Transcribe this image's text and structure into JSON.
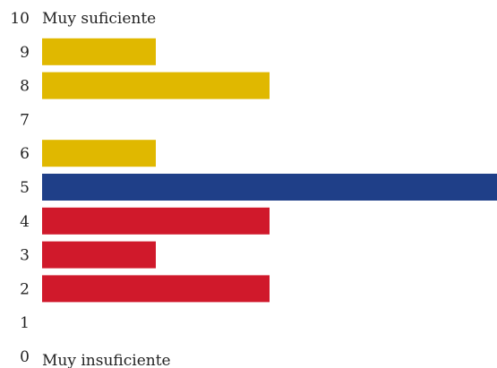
{
  "chart_data": {
    "type": "bar",
    "orientation": "horizontal",
    "categories": [
      "10",
      "9",
      "8",
      "7",
      "6",
      "5",
      "4",
      "3",
      "2",
      "1",
      "0"
    ],
    "values": [
      0,
      1,
      2,
      0,
      1,
      4,
      2,
      1,
      2,
      0,
      0
    ],
    "colors": [
      "#e0b800",
      "#e0b800",
      "#e0b800",
      "#e0b800",
      "#e0b800",
      "#1f3f88",
      "#d0192b",
      "#d0192b",
      "#d0192b",
      "#d0192b",
      "#d0192b"
    ],
    "annotations": {
      "top": "Muy suficiente",
      "bottom": "Muy insuficiente"
    },
    "xlim": [
      0,
      4
    ],
    "grid": false,
    "legend": "none"
  }
}
